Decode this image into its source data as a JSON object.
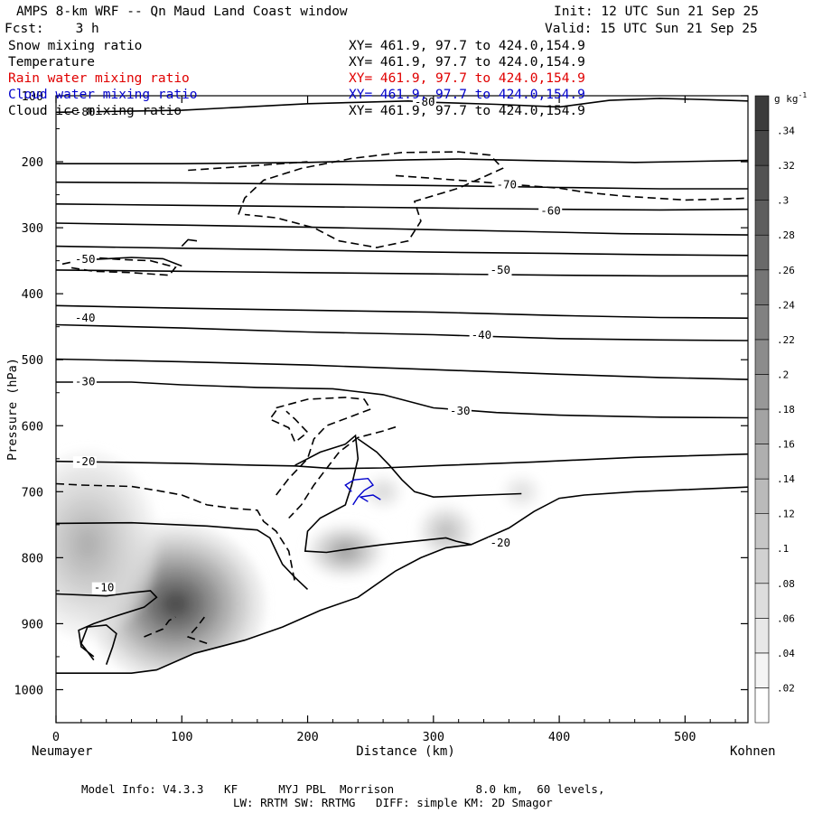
{
  "header": {
    "title": "AMPS 8-km WRF -- Qn Maud Land Coast window",
    "init": "Init: 12 UTC Sun 21 Sep 25",
    "forecast": "Fcst:    3 h",
    "valid": "Valid: 15 UTC Sun 21 Sep 25"
  },
  "fields": [
    {
      "name": "Snow mixing ratio",
      "xy": "XY= 461.9, 97.7 to 424.0,154.9",
      "color": "#000000"
    },
    {
      "name": "Temperature",
      "xy": "XY= 461.9, 97.7 to 424.0,154.9",
      "color": "#000000"
    },
    {
      "name": "Rain water mixing ratio",
      "xy": "XY= 461.9, 97.7 to 424.0,154.9",
      "color": "#e00000"
    },
    {
      "name": "Cloud water mixing ratio",
      "xy": "XY= 461.9, 97.7 to 424.0,154.9",
      "color": "#0000cc"
    },
    {
      "name": "Cloud ice mixing ratio",
      "xy": "XY= 461.9, 97.7 to 424.0,154.9",
      "color": "#000000"
    }
  ],
  "axes": {
    "ylabel": "Pressure (hPa)",
    "xlabel": "Distance (km)",
    "left_location": "Neumayer",
    "right_location": "Kohnen",
    "y_ticks": [
      "100",
      "200",
      "300",
      "400",
      "500",
      "600",
      "700",
      "800",
      "900",
      "1000"
    ],
    "x_ticks": [
      "0",
      "100",
      "200",
      "300",
      "400",
      "500"
    ]
  },
  "colorbar": {
    "unit_base": "g kg",
    "unit_exp": "-1",
    "labels": [
      ".02",
      ".04",
      ".06",
      ".08",
      ".1",
      ".12",
      ".14",
      ".16",
      ".18",
      ".2",
      ".22",
      ".24",
      ".26",
      ".28",
      ".3",
      ".32",
      ".34"
    ]
  },
  "chart_data": {
    "type": "heatmap",
    "title": "AMPS 8-km WRF -- Qn Maud Land Coast window",
    "xlabel": "Distance (km)",
    "ylabel": "Pressure (hPa)",
    "xlim": [
      0,
      550
    ],
    "ylim": [
      1050,
      100
    ],
    "x_ticks": [
      0,
      100,
      200,
      300,
      400,
      500
    ],
    "y_ticks": [
      100,
      200,
      300,
      400,
      500,
      600,
      700,
      800,
      900,
      1000
    ],
    "colorbar_levels": [
      0.02,
      0.04,
      0.06,
      0.08,
      0.1,
      0.12,
      0.14,
      0.16,
      0.18,
      0.2,
      0.22,
      0.24,
      0.26,
      0.28,
      0.3,
      0.32,
      0.34
    ],
    "shading_field": "Snow mixing ratio",
    "shading_blobs": [
      {
        "x": 95,
        "p": 870,
        "rx": 70,
        "rp": 120,
        "peak": 0.34
      },
      {
        "x": 25,
        "p": 780,
        "rx": 55,
        "rp": 140,
        "peak": 0.14
      },
      {
        "x": 230,
        "p": 790,
        "rx": 30,
        "rp": 40,
        "peak": 0.18
      },
      {
        "x": 310,
        "p": 760,
        "rx": 22,
        "rp": 40,
        "peak": 0.12
      },
      {
        "x": 260,
        "p": 700,
        "rx": 15,
        "rp": 25,
        "peak": 0.06
      },
      {
        "x": 370,
        "p": 700,
        "rx": 15,
        "rp": 25,
        "peak": 0.05
      }
    ],
    "terrain_surface": [
      [
        0,
        975
      ],
      [
        60,
        975
      ],
      [
        80,
        970
      ],
      [
        110,
        945
      ],
      [
        150,
        925
      ],
      [
        180,
        905
      ],
      [
        210,
        880
      ],
      [
        240,
        860
      ],
      [
        270,
        820
      ],
      [
        290,
        800
      ],
      [
        310,
        785
      ],
      [
        330,
        780
      ],
      [
        360,
        755
      ],
      [
        380,
        730
      ],
      [
        400,
        710
      ],
      [
        420,
        705
      ],
      [
        460,
        700
      ],
      [
        500,
        697
      ],
      [
        550,
        693
      ]
    ],
    "temperature_labels": [
      {
        "text": "-80",
        "x": 15,
        "p": 130
      },
      {
        "text": "-80",
        "x": 285,
        "p": 115
      },
      {
        "text": "-70",
        "x": 350,
        "p": 240
      },
      {
        "text": "-60",
        "x": 385,
        "p": 280
      },
      {
        "text": "-50",
        "x": 15,
        "p": 353
      },
      {
        "text": "-50",
        "x": 345,
        "p": 370
      },
      {
        "text": "-40",
        "x": 15,
        "p": 442
      },
      {
        "text": "-40",
        "x": 330,
        "p": 468
      },
      {
        "text": "-30",
        "x": 15,
        "p": 539
      },
      {
        "text": "-30",
        "x": 313,
        "p": 583
      },
      {
        "text": "-20",
        "x": 15,
        "p": 660
      },
      {
        "text": "-20",
        "x": 345,
        "p": 783
      },
      {
        "text": "-10",
        "x": 30,
        "p": 851
      }
    ],
    "series": [
      {
        "name": "Temperature",
        "style": "solid",
        "contour_levels": [
          -80,
          -70,
          -60,
          -50,
          -40,
          -30,
          -20,
          -10
        ]
      },
      {
        "name": "Cloud ice mixing ratio",
        "style": "dashed"
      },
      {
        "name": "Cloud water mixing ratio",
        "style": "blue"
      }
    ]
  },
  "footer": {
    "line1": "Model Info: V4.3.3   KF      MYJ PBL  Morrison            8.0 km,  60 levels,",
    "line2": "LW: RRTM SW: RRTMG   DIFF: simple KM: 2D Smagor"
  }
}
